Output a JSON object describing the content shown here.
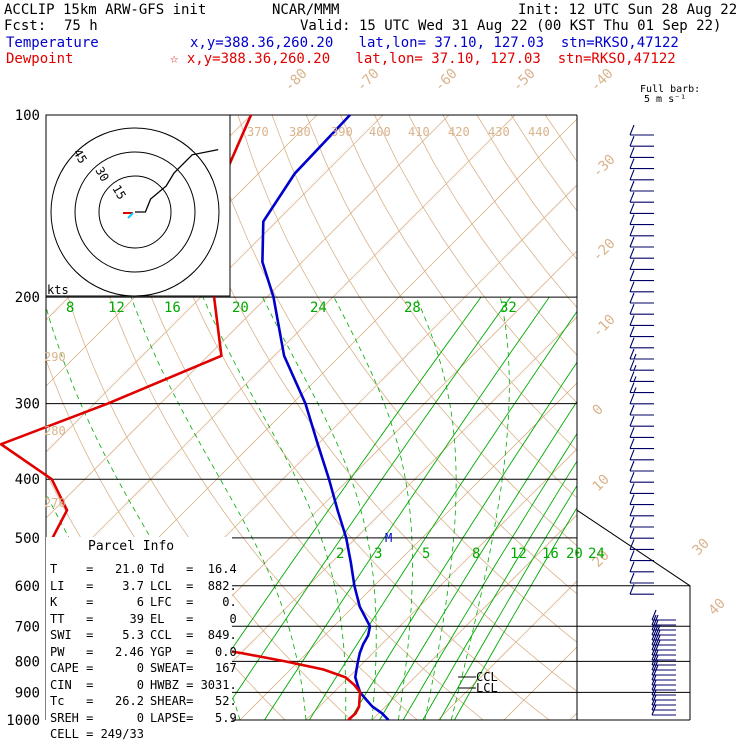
{
  "header": {
    "line1_left": "ACCLIP 15km ARW-GFS init",
    "line1_mid": "NCAR/MMM",
    "line1_right": "Init: 12 UTC Sun 28 Aug 22",
    "fcst_label": "Fcst:",
    "fcst_value": "75 h",
    "valid": "Valid: 15 UTC Wed 31 Aug 22 (00 KST Thu 01 Sep 22)",
    "temp_label": "Temperature",
    "temp_info": "x,y=388.36,260.20   lat,lon= 37.10, 127.03  stn=RKSO,47122",
    "dew_label": "Dewpoint",
    "dew_info": "☆ x,y=388.36,260.20   lat,lon= 37.10, 127.03  stn=RKSO,47122",
    "barb_legend_1": "Full barb:",
    "barb_legend_2": "5 m s⁻¹"
  },
  "colors": {
    "temperature": "#0000cc",
    "dewpoint": "#e00000",
    "mixing_ratio": "#00aa00",
    "dry_adiabat": "#d9b38c",
    "isotherm": "#d9b38c",
    "grid": "#000000"
  },
  "chart_data": {
    "type": "line",
    "title": "",
    "y_axis": {
      "label": "",
      "scale": "log",
      "ticks": [
        100,
        200,
        300,
        400,
        500,
        600,
        700,
        800,
        900,
        1000
      ],
      "range": [
        1000,
        100
      ]
    },
    "isotherm_labels": [
      -80,
      -70,
      -60,
      -50,
      -40,
      -30,
      -20,
      -10,
      0,
      10,
      20,
      30,
      40
    ],
    "theta_labels": [
      370,
      380,
      390,
      400,
      410,
      420,
      430,
      440,
      290,
      280,
      270
    ],
    "mixing_ratio_labels_upper": [
      8,
      12,
      16,
      20,
      24,
      28,
      32
    ],
    "mixing_ratio_labels_lower": [
      2,
      3,
      5,
      8,
      12,
      16,
      20,
      24
    ],
    "series": [
      {
        "name": "Temperature",
        "points": [
          {
            "p": 1000,
            "t": 22.5
          },
          {
            "p": 975,
            "t": 20.5
          },
          {
            "p": 950,
            "t": 18.0
          },
          {
            "p": 925,
            "t": 16.0
          },
          {
            "p": 900,
            "t": 14.0
          },
          {
            "p": 875,
            "t": 12.5
          },
          {
            "p": 850,
            "t": 11.0
          },
          {
            "p": 825,
            "t": 10.0
          },
          {
            "p": 800,
            "t": 9.0
          },
          {
            "p": 775,
            "t": 8.0
          },
          {
            "p": 750,
            "t": 7.2
          },
          {
            "p": 725,
            "t": 6.6
          },
          {
            "p": 700,
            "t": 5.5
          },
          {
            "p": 650,
            "t": 1.0
          },
          {
            "p": 600,
            "t": -3.0
          },
          {
            "p": 550,
            "t": -7.0
          },
          {
            "p": 500,
            "t": -11.5
          },
          {
            "p": 450,
            "t": -17.0
          },
          {
            "p": 400,
            "t": -23.0
          },
          {
            "p": 350,
            "t": -30.0
          },
          {
            "p": 300,
            "t": -38.0
          },
          {
            "p": 250,
            "t": -48.5
          },
          {
            "p": 200,
            "t": -59.0
          },
          {
            "p": 175,
            "t": -66.0
          },
          {
            "p": 150,
            "t": -72.0
          },
          {
            "p": 125,
            "t": -74.5
          },
          {
            "p": 100,
            "t": -75.0
          }
        ]
      },
      {
        "name": "Dewpoint",
        "points": [
          {
            "p": 1000,
            "t": 16.4
          },
          {
            "p": 975,
            "t": 16.5
          },
          {
            "p": 950,
            "t": 16.0
          },
          {
            "p": 925,
            "t": 15.0
          },
          {
            "p": 900,
            "t": 14.0
          },
          {
            "p": 875,
            "t": 12.0
          },
          {
            "p": 850,
            "t": 9.5
          },
          {
            "p": 825,
            "t": 5.0
          },
          {
            "p": 800,
            "t": -2.0
          },
          {
            "p": 775,
            "t": -10.0
          },
          {
            "p": 750,
            "t": -20.0
          },
          {
            "p": 725,
            "t": -28.0
          },
          {
            "p": 700,
            "t": -34.0
          },
          {
            "p": 650,
            "t": -37.0
          },
          {
            "p": 600,
            "t": -42.0
          },
          {
            "p": 550,
            "t": -48.0
          },
          {
            "p": 500,
            "t": -56.0
          },
          {
            "p": 450,
            "t": -58.0
          },
          {
            "p": 400,
            "t": -65.0
          },
          {
            "p": 350,
            "t": -78.0
          },
          {
            "p": 300,
            "t": -68.0
          },
          {
            "p": 250,
            "t": -58.0
          },
          {
            "p": 200,
            "t": -68.0
          },
          {
            "p": 175,
            "t": -73.0
          },
          {
            "p": 150,
            "t": -79.0
          },
          {
            "p": 125,
            "t": -85.0
          },
          {
            "p": 100,
            "t": -90.0
          }
        ]
      }
    ],
    "annotations": [
      "CCL",
      "LCL",
      "M"
    ],
    "hodograph": {
      "units_label": "kts",
      "ring_labels": [
        "15",
        "30",
        "45"
      ],
      "points": [
        [
          0,
          0
        ],
        [
          4,
          0
        ],
        [
          6,
          5
        ],
        [
          12,
          10
        ],
        [
          15,
          15
        ],
        [
          22,
          22
        ],
        [
          32,
          24
        ]
      ]
    },
    "wind_barbs": {
      "upper_speeds_ms": [
        10,
        10,
        10,
        10,
        10,
        10,
        10,
        10,
        10,
        10,
        10,
        10,
        10,
        10,
        10,
        10,
        10,
        10,
        10,
        10,
        15,
        15,
        15,
        15,
        10,
        10,
        10,
        10,
        10,
        10,
        10,
        10,
        10,
        10,
        10,
        10,
        10,
        10,
        10,
        10,
        10,
        10
      ],
      "lower_speeds_ms": [
        15,
        15,
        15,
        20,
        20,
        20,
        20,
        15,
        15,
        15,
        15,
        10,
        10,
        10,
        10,
        10,
        10,
        10,
        10,
        10
      ]
    }
  },
  "parcel_info": {
    "title": "Parcel Info",
    "rows": [
      {
        "l1": "T",
        "v1": "21.0",
        "l2": "Td",
        "v2": "16.4"
      },
      {
        "l1": "LI",
        "v1": "3.7",
        "l2": "LCL",
        "v2": "882."
      },
      {
        "l1": "K",
        "v1": "6",
        "l2": "LFC",
        "v2": "0."
      },
      {
        "l1": "TT",
        "v1": "39",
        "l2": "EL",
        "v2": "0"
      },
      {
        "l1": "SWI",
        "v1": "5.3",
        "l2": "CCL",
        "v2": "849."
      },
      {
        "l1": "PW",
        "v1": "2.46",
        "l2": "YGP",
        "v2": "0.0"
      },
      {
        "l1": "CAPE",
        "v1": "0",
        "l2": "SWEAT",
        "v2": "167"
      },
      {
        "l1": "CIN",
        "v1": "0",
        "l2": "HWBZ",
        "v2": "3031."
      },
      {
        "l1": "Tc",
        "v1": "26.2",
        "l2": "SHEAR",
        "v2": "52."
      },
      {
        "l1": "SREH",
        "v1": "0",
        "l2": "LAPSE",
        "v2": "5.9"
      },
      {
        "l1": "CELL",
        "v1": "249/33",
        "l2": "",
        "v2": ""
      }
    ]
  }
}
